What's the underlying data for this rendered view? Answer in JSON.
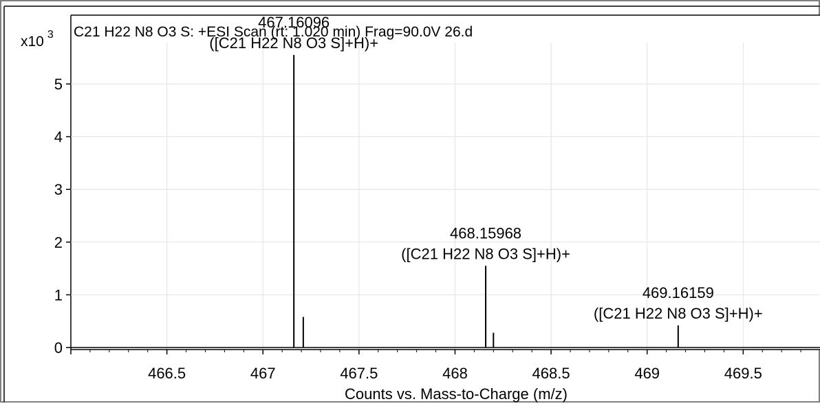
{
  "chart_data": {
    "type": "bar",
    "title": "C21 H22 N8 O3 S: +ESI Scan (rt: 1.020 min) Frag=90.0V 26.d",
    "y_multiplier_label": "x10",
    "y_multiplier_exponent": "3",
    "xlabel": "Counts vs. Mass-to-Charge (m/z)",
    "ylabel": "",
    "xlim": [
      466.0,
      469.9
    ],
    "ylim": [
      0,
      5.6
    ],
    "grid": true,
    "x_ticks": [
      466.5,
      467,
      467.5,
      468,
      468.5,
      469,
      469.5
    ],
    "x_tick_labels": [
      "466.5",
      "467",
      "467.5",
      "468",
      "468.5",
      "469",
      "469.5"
    ],
    "y_ticks": [
      0,
      1,
      2,
      3,
      4,
      5
    ],
    "y_tick_labels": [
      "0",
      "1",
      "2",
      "3",
      "4",
      "5"
    ],
    "peaks": [
      {
        "mz": 467.16096,
        "intensity": 5.55,
        "label_mz": "467.16096",
        "label_ion": "([C21 H22 N8 O3 S]+H)+"
      },
      {
        "mz": 467.21,
        "intensity": 0.58
      },
      {
        "mz": 468.15968,
        "intensity": 1.55,
        "label_mz": "468.15968",
        "label_ion": "([C21 H22 N8 O3 S]+H)+"
      },
      {
        "mz": 468.2,
        "intensity": 0.28
      },
      {
        "mz": 469.16159,
        "intensity": 0.42,
        "label_mz": "469.16159",
        "label_ion": "([C21 H22 N8 O3 S]+H)+"
      }
    ]
  }
}
